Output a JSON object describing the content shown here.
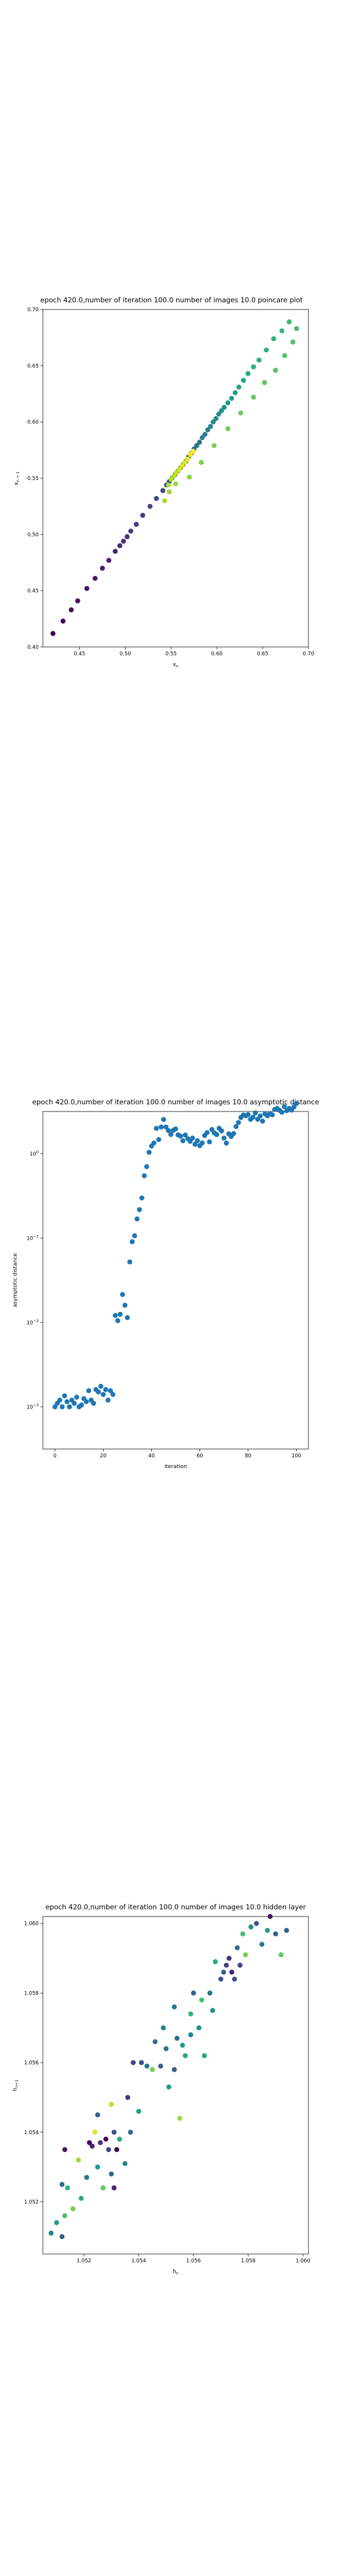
{
  "charts": [
    {
      "type": "scatter",
      "title": "epoch 420.0,number of iteration 100.0 number of images 10.0 poincare plot",
      "xlabel": "x",
      "xlabel_sub": "n",
      "ylabel": "x",
      "ylabel_sub": "n + 1",
      "xlim": [
        0.41,
        0.7
      ],
      "ylim": [
        0.4,
        0.7
      ],
      "xticks": [
        "0.45",
        "0.50",
        "0.55",
        "0.60",
        "0.65",
        "0.70"
      ],
      "xtick_values": [
        0.45,
        0.5,
        0.55,
        0.6,
        0.65,
        0.7
      ],
      "yticks": [
        "0.40",
        "0.45",
        "0.50",
        "0.55",
        "0.60",
        "0.65",
        "0.70"
      ],
      "ytick_values": [
        0.4,
        0.45,
        0.5,
        0.55,
        0.6,
        0.65,
        0.7
      ],
      "grid": false,
      "colormap": "viridis",
      "points": [
        [
          0.421,
          0.412
        ],
        [
          0.432,
          0.423
        ],
        [
          0.441,
          0.433
        ],
        [
          0.448,
          0.441
        ],
        [
          0.458,
          0.452
        ],
        [
          0.467,
          0.461
        ],
        [
          0.475,
          0.47
        ],
        [
          0.482,
          0.477
        ],
        [
          0.489,
          0.485
        ],
        [
          0.494,
          0.49
        ],
        [
          0.498,
          0.494
        ],
        [
          0.502,
          0.498
        ],
        [
          0.506,
          0.503
        ],
        [
          0.512,
          0.509
        ],
        [
          0.519,
          0.517
        ],
        [
          0.527,
          0.525
        ],
        [
          0.534,
          0.532
        ],
        [
          0.541,
          0.539
        ],
        [
          0.545,
          0.544
        ],
        [
          0.548,
          0.547
        ],
        [
          0.551,
          0.55
        ],
        [
          0.554,
          0.553
        ],
        [
          0.557,
          0.556
        ],
        [
          0.56,
          0.559
        ],
        [
          0.563,
          0.562
        ],
        [
          0.566,
          0.565
        ],
        [
          0.569,
          0.569
        ],
        [
          0.572,
          0.572
        ],
        [
          0.575,
          0.576
        ],
        [
          0.578,
          0.579
        ],
        [
          0.581,
          0.582
        ],
        [
          0.584,
          0.586
        ],
        [
          0.587,
          0.589
        ],
        [
          0.59,
          0.593
        ],
        [
          0.593,
          0.596
        ],
        [
          0.596,
          0.6
        ],
        [
          0.599,
          0.603
        ],
        [
          0.602,
          0.607
        ],
        [
          0.605,
          0.61
        ],
        [
          0.608,
          0.613
        ],
        [
          0.612,
          0.617
        ],
        [
          0.616,
          0.621
        ],
        [
          0.62,
          0.626
        ],
        [
          0.624,
          0.631
        ],
        [
          0.629,
          0.637
        ],
        [
          0.634,
          0.643
        ],
        [
          0.64,
          0.649
        ],
        [
          0.646,
          0.655
        ],
        [
          0.654,
          0.664
        ],
        [
          0.662,
          0.674
        ],
        [
          0.671,
          0.681
        ],
        [
          0.679,
          0.689
        ],
        [
          0.687,
          0.683
        ],
        [
          0.683,
          0.671
        ],
        [
          0.674,
          0.659
        ],
        [
          0.664,
          0.646
        ],
        [
          0.652,
          0.635
        ],
        [
          0.64,
          0.622
        ],
        [
          0.626,
          0.608
        ],
        [
          0.612,
          0.594
        ],
        [
          0.597,
          0.579
        ],
        [
          0.583,
          0.564
        ],
        [
          0.57,
          0.551
        ],
        [
          0.555,
          0.545
        ],
        [
          0.548,
          0.538
        ],
        [
          0.543,
          0.53
        ],
        [
          0.547,
          0.544
        ],
        [
          0.55,
          0.549
        ],
        [
          0.553,
          0.552
        ],
        [
          0.556,
          0.555
        ],
        [
          0.559,
          0.558
        ],
        [
          0.562,
          0.561
        ],
        [
          0.565,
          0.564
        ],
        [
          0.568,
          0.567
        ],
        [
          0.571,
          0.571
        ],
        [
          0.574,
          0.574
        ]
      ]
    },
    {
      "type": "scatter",
      "title": "epoch 420.0,number of iteration 100.0  number of images 10.0 asymptotic distance",
      "xlabel": "iteration",
      "ylabel": "asymptotic distance",
      "xlim": [
        -5,
        105
      ],
      "ylim_log10": [
        -3.5,
        0.5
      ],
      "yscale": "log",
      "xticks": [
        "0",
        "20",
        "40",
        "60",
        "80",
        "100"
      ],
      "xtick_values": [
        0,
        20,
        40,
        60,
        80,
        100
      ],
      "ytick_exponents": [
        -3,
        -2,
        -1,
        0
      ],
      "ytick_base": "10",
      "yticks": [
        "−3",
        "−2",
        "−1",
        "0"
      ],
      "grid": false,
      "color": "#1f77b4",
      "x": [
        0,
        1,
        2,
        3,
        4,
        5,
        6,
        7,
        8,
        9,
        10,
        11,
        12,
        13,
        14,
        15,
        16,
        17,
        18,
        19,
        20,
        21,
        22,
        23,
        24,
        25,
        26,
        27,
        28,
        29,
        30,
        31,
        32,
        33,
        34,
        35,
        36,
        37,
        38,
        39,
        40,
        41,
        42,
        43,
        44,
        45,
        46,
        47,
        48,
        49,
        50,
        51,
        52,
        53,
        54,
        55,
        56,
        57,
        58,
        59,
        60,
        61,
        62,
        63,
        64,
        65,
        66,
        67,
        68,
        69,
        70,
        71,
        72,
        73,
        74,
        75,
        76,
        77,
        78,
        79,
        80,
        81,
        82,
        83,
        84,
        85,
        86,
        87,
        88,
        89,
        90,
        91,
        92,
        93,
        94,
        95,
        96,
        97,
        98,
        99,
        100
      ],
      "y": [
        0.001,
        0.0011,
        0.0012,
        0.001,
        0.00135,
        0.00115,
        0.001,
        0.0012,
        0.0011,
        0.0013,
        0.001,
        0.00105,
        0.00125,
        0.00115,
        0.00155,
        0.0012,
        0.0011,
        0.0016,
        0.0015,
        0.00175,
        0.0014,
        0.0016,
        0.0012,
        0.00155,
        0.0014,
        0.0121,
        0.0105,
        0.0125,
        0.0214,
        0.016,
        0.0114,
        0.0521,
        0.0905,
        0.1065,
        0.1685,
        0.217,
        0.299,
        0.547,
        0.702,
        1.038,
        1.233,
        1.339,
        1.996,
        1.471,
        2.071,
        2.541,
        2.069,
        1.878,
        1.687,
        1.89,
        1.966,
        1.671,
        1.613,
        1.422,
        1.665,
        1.504,
        1.402,
        1.532,
        1.293,
        1.422,
        1.244,
        1.34,
        1.642,
        1.776,
        1.382,
        1.935,
        1.761,
        1.684,
        1.998,
        1.863,
        1.529,
        1.334,
        1.718,
        1.599,
        1.73,
        2.093,
        2.341,
        2.686,
        2.873,
        2.815,
        2.907,
        2.554,
        2.7,
        3.041,
        2.558,
        2.794,
        2.431,
        2.965,
        2.808,
        2.983,
        2.89,
        3.344,
        3.438,
        3.268,
        3.093,
        3.615,
        3.235,
        3.436,
        3.286,
        3.578,
        3.934
      ]
    },
    {
      "type": "scatter",
      "title": "epoch 420.0,number of iteration 100.0  number of images 10.0 hidden layer",
      "xlabel": "h",
      "xlabel_sub": "n",
      "xlabel_sup": "",
      "ylabel": "h",
      "ylabel_sub": "n+1",
      "xlim": [
        1.0505,
        1.0602
      ],
      "ylim": [
        1.0505,
        1.0602
      ],
      "xticks": [
        "1.052",
        "1.054",
        "1.056",
        "1.058",
        "1.060"
      ],
      "xtick_values": [
        1.052,
        1.054,
        1.056,
        1.058,
        1.06
      ],
      "yticks": [
        "1.052",
        "1.054",
        "1.056",
        "1.058",
        "1.060"
      ],
      "ytick_values": [
        1.052,
        1.054,
        1.056,
        1.058,
        1.06
      ],
      "grid": false,
      "colormap": "viridis",
      "points": [
        [
          1.0508,
          1.0511,
          0.45
        ],
        [
          1.051,
          1.0514,
          0.55
        ],
        [
          1.0512,
          1.051,
          0.3
        ],
        [
          1.0513,
          1.0516,
          0.7
        ],
        [
          1.0512,
          1.0525,
          0.35
        ],
        [
          1.0514,
          1.0524,
          0.65
        ],
        [
          1.0513,
          1.0535,
          0.05
        ],
        [
          1.0516,
          1.0518,
          0.8
        ],
        [
          1.0518,
          1.0532,
          0.85
        ],
        [
          1.0519,
          1.0521,
          0.6
        ],
        [
          1.0521,
          1.0527,
          0.4
        ],
        [
          1.0522,
          1.0537,
          0.0
        ],
        [
          1.0523,
          1.0536,
          0.1
        ],
        [
          1.0524,
          1.054,
          0.95
        ],
        [
          1.0525,
          1.053,
          0.55
        ],
        [
          1.0525,
          1.0545,
          0.3
        ],
        [
          1.0526,
          1.0537,
          0.15
        ],
        [
          1.0527,
          1.0524,
          0.75
        ],
        [
          1.0528,
          1.0538,
          0.02
        ],
        [
          1.0529,
          1.0535,
          0.2
        ],
        [
          1.053,
          1.0548,
          0.9
        ],
        [
          1.053,
          1.0528,
          0.35
        ],
        [
          1.0531,
          1.0524,
          0.1
        ],
        [
          1.0531,
          1.054,
          0.25
        ],
        [
          1.0532,
          1.0535,
          0.0
        ],
        [
          1.0533,
          1.0538,
          0.6
        ],
        [
          1.0535,
          1.0531,
          0.45
        ],
        [
          1.0536,
          1.055,
          0.15
        ],
        [
          1.0537,
          1.054,
          0.35
        ],
        [
          1.0538,
          1.056,
          0.2
        ],
        [
          1.054,
          1.0546,
          0.55
        ],
        [
          1.0541,
          1.056,
          0.25
        ],
        [
          1.0543,
          1.0559,
          0.4
        ],
        [
          1.0545,
          1.0558,
          0.8
        ],
        [
          1.0546,
          1.0566,
          0.35
        ],
        [
          1.0548,
          1.0559,
          0.3
        ],
        [
          1.0549,
          1.057,
          0.45
        ],
        [
          1.055,
          1.0564,
          0.4
        ],
        [
          1.0551,
          1.0553,
          0.55
        ],
        [
          1.0553,
          1.0558,
          0.3
        ],
        [
          1.0553,
          1.0576,
          0.4
        ],
        [
          1.0554,
          1.0567,
          0.35
        ],
        [
          1.0555,
          1.0544,
          0.85
        ],
        [
          1.0556,
          1.0565,
          0.55
        ],
        [
          1.0557,
          1.0562,
          0.6
        ],
        [
          1.0559,
          1.0568,
          0.45
        ],
        [
          1.0559,
          1.0574,
          0.65
        ],
        [
          1.056,
          1.058,
          0.3
        ],
        [
          1.0562,
          1.057,
          0.5
        ],
        [
          1.0563,
          1.0578,
          0.7
        ],
        [
          1.0564,
          1.0562,
          0.6
        ],
        [
          1.0566,
          1.058,
          0.35
        ],
        [
          1.0567,
          1.0575,
          0.5
        ],
        [
          1.0568,
          1.0589,
          0.6
        ],
        [
          1.057,
          1.0584,
          0.25
        ],
        [
          1.0571,
          1.0586,
          0.3
        ],
        [
          1.0572,
          1.0588,
          0.2
        ],
        [
          1.0573,
          1.059,
          0.15
        ],
        [
          1.0574,
          1.0586,
          0.1
        ],
        [
          1.0575,
          1.0584,
          0.25
        ],
        [
          1.0576,
          1.0593,
          0.35
        ],
        [
          1.0577,
          1.0588,
          0.2
        ],
        [
          1.0578,
          1.0597,
          0.7
        ],
        [
          1.0579,
          1.0591,
          0.8
        ],
        [
          1.0581,
          1.0599,
          0.5
        ],
        [
          1.0583,
          1.06,
          0.25
        ],
        [
          1.0585,
          1.0594,
          0.4
        ],
        [
          1.0587,
          1.0598,
          0.55
        ],
        [
          1.0588,
          1.0602,
          0.05
        ],
        [
          1.059,
          1.0597,
          0.3
        ],
        [
          1.0592,
          1.0591,
          0.75
        ],
        [
          1.0594,
          1.0598,
          0.3
        ]
      ]
    }
  ]
}
